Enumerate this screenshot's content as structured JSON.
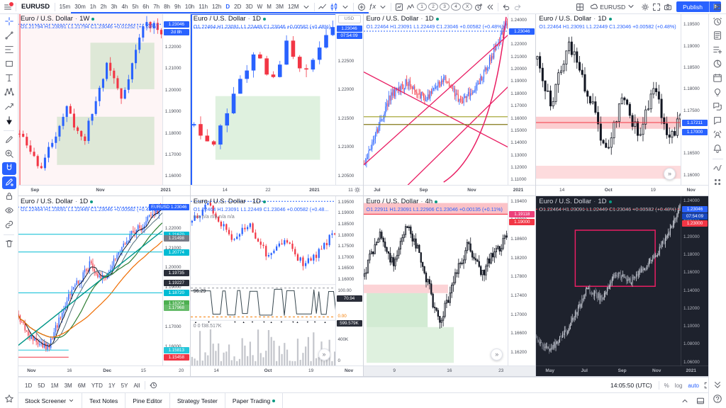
{
  "toolbar": {
    "symbol": "EURUSD",
    "timeframes": [
      "15m",
      "30m",
      "1h",
      "2h",
      "3h",
      "4h",
      "5h",
      "6h",
      "7h",
      "8h",
      "9h",
      "10h",
      "11h",
      "12h",
      "D",
      "2D",
      "3D",
      "W",
      "M",
      "3M",
      "12M"
    ],
    "active_timeframe": "D",
    "fx_label": "ƒx",
    "quick_buttons": [
      "1",
      "2",
      "3",
      "4",
      "X"
    ],
    "layout_name": "EURUSD",
    "publish_label": "Publish",
    "accent_color": "#2962ff"
  },
  "left_toolbar": {
    "tools": [
      "crosshair",
      "trend-line",
      "fib-retracement",
      "rectangle",
      "text-tool",
      "xabcd-pattern",
      "forecast",
      "arrow-marker",
      "brush",
      "zoom-in",
      "magnet",
      "drawing-mode",
      "lock-all-drawings",
      "hide-all-drawings",
      "sync-drawings",
      "remove-drawings"
    ],
    "active": [
      "magnet",
      "drawing-mode"
    ],
    "bottom": "favorites"
  },
  "right_toolbar": {
    "items": [
      "alerts",
      "news",
      "watchlist-add",
      "hotlists",
      "economic-calendar",
      "ideas",
      "public-chats",
      "private-chats",
      "streams",
      "notifications",
      "object-tree",
      "more"
    ],
    "bottom": [
      "collapse",
      "help"
    ]
  },
  "panels": [
    {
      "title": "Euro / U.S. Dollar",
      "timeframe": "1W",
      "ohlc": "O1.21794 H1.23091 L1.21794 C1.23046 +0.01252 (+1.03%)",
      "price_ticks": [
        "1.22000",
        "1.21000",
        "1.20000",
        "1.19000",
        "1.18000",
        "1.17000",
        "1.16000"
      ],
      "tags": [
        {
          "text": "1.23046",
          "color": "#2962ff"
        },
        {
          "text": "2d 8h",
          "color": "#2962ff"
        }
      ],
      "time_ticks": [
        "Sep",
        "Nov",
        "2021"
      ]
    },
    {
      "title": "Euro / U.S. Dollar",
      "timeframe": "1D",
      "ohlc": "O1.22464 H1.23091 L1.22449 C1.23046 +0.00582 (+0.48%)",
      "currency_button": "USD",
      "price_ticks": [
        "1.22500",
        "1.22000",
        "1.21500",
        "1.21000",
        "1.20500"
      ],
      "tags": [
        {
          "text": "1.23046",
          "color": "#2962ff"
        },
        {
          "text": "07:54:09",
          "color": "#2962ff"
        }
      ],
      "time_ticks": [
        "14",
        "22",
        "2021",
        "11"
      ]
    },
    {
      "title": "Euro / U.S. Dollar",
      "timeframe": "1D",
      "ohlc": "O1.22464 H1.23091 L1.22449 C1.23046 +0.00582 (+0.48%)",
      "price_ticks": [
        "1.24000",
        "1.23000",
        "1.22000",
        "1.21000",
        "1.20000",
        "1.19000",
        "1.18000",
        "1.17000",
        "1.16000",
        "1.15000",
        "1.14000",
        "1.13000",
        "1.12000",
        "1.11000"
      ],
      "tags": [
        {
          "text": "1.23046",
          "color": "#2962ff"
        }
      ],
      "time_ticks": [
        "Jul",
        "Sep",
        "Nov",
        "2021"
      ]
    },
    {
      "title": "Euro / U.S. Dollar",
      "timeframe": "1D",
      "ohlc": "O1.22464 H1.23091 L1.22449 C1.23046 +0.00582 (+0.48%)",
      "price_ticks": [
        "1.19500",
        "1.19000",
        "1.18500",
        "1.18000",
        "1.17500",
        "1.17000",
        "1.16500",
        "1.16000"
      ],
      "tags": [
        {
          "text": "1.17211",
          "color": "#2962ff"
        },
        {
          "text": "1.17000",
          "color": "#2962ff"
        }
      ],
      "time_ticks": [
        "14",
        "Oct",
        "19",
        "Nov"
      ],
      "expand": true
    },
    {
      "title": "Euro / U.S. Dollar",
      "timeframe": "1D",
      "ohlc": "O1.22464 H1.23091 L1.22449 C1.23046 +0.00582 (+0.48%)",
      "price_ticks": [
        "1.23000",
        "1.22000",
        "1.21000",
        "1.20000",
        "1.19000",
        "1.18000",
        "1.17000",
        "1.16000"
      ],
      "tags": [
        {
          "text": "EURUSD 1.23046",
          "color": "#2962ff",
          "wide": true
        },
        {
          "text": "1.21670",
          "color": "#00bcd4"
        },
        {
          "text": "1.21498",
          "color": "#787b86"
        },
        {
          "text": "1.20774",
          "color": "#00bcd4"
        },
        {
          "text": "1.19735",
          "color": "#2a2e39"
        },
        {
          "text": "1.19227",
          "color": "#2a2e39"
        },
        {
          "text": "1.18720",
          "color": "#00bcd4"
        },
        {
          "text": "1.18204",
          "color": "#4caf50"
        },
        {
          "text": "1.17968",
          "color": "#66bb6a"
        },
        {
          "text": "1.15813",
          "color": "#26c6da"
        },
        {
          "text": "1.15458",
          "color": "#f23645"
        }
      ],
      "time_ticks": [
        "Nov",
        "16",
        "Dec",
        "15",
        "20"
      ]
    },
    {
      "title": "Euro / U.S. Dollar",
      "timeframe": "1D",
      "ohlc": "O1.22464 H1.23091 L1.22449 C1.23046 +0.00582 (+0.48...",
      "indicator_line": "n/a n/a n/a n/a n/a",
      "price_ticks": [
        "1.19500",
        "1.19000",
        "1.18500",
        "1.18000",
        "1.17500",
        "1.17000",
        "1.16500",
        "1.16000"
      ],
      "tags": [],
      "stoch": {
        "label": "96.29",
        "upper": "100.00",
        "tag": "70.94",
        "lower": "0.00"
      },
      "volume": {
        "label": "0 0 f38.517K",
        "tag": "599.579K",
        "tick": "400K",
        "zero": "0"
      },
      "time_ticks": [
        "14",
        "Oct",
        "19",
        "Nov"
      ],
      "expand": true
    },
    {
      "title": "Euro / U.S. Dollar",
      "timeframe": "4h",
      "ohlc": "O1.22911 H1.23091 L1.22906 C1.23046 +0.00135 (+0.11%)",
      "price_ticks": [
        "1.19400",
        "1.19000",
        "1.18600",
        "1.18200",
        "1.17800",
        "1.17400",
        "1.17000",
        "1.16600",
        "1.16200"
      ],
      "tags": [
        {
          "text": "1.19118",
          "color": "#ec407a"
        },
        {
          "text": "1.19000",
          "color": "#f23645"
        }
      ],
      "time_ticks": [
        "9",
        "16",
        "23"
      ],
      "expand": true
    },
    {
      "title": "Euro / U.S. Dollar",
      "timeframe": "1D",
      "ohlc": "O1.22464 H1.23091 L1.22449 C1.23046 +0.00582 (+0.48%)",
      "price_ticks": [
        "1.24000",
        "1.22000",
        "1.20000",
        "1.18000",
        "1.16000",
        "1.14000",
        "1.12000",
        "1.10000",
        "1.08000",
        "1.06000"
      ],
      "tags": [
        {
          "text": "1.23046",
          "color": "#2962ff"
        },
        {
          "text": "07:54:09",
          "color": "#1848c0"
        },
        {
          "text": "1.23000",
          "color": "#f23645"
        }
      ],
      "time_ticks": [
        "May",
        "Jul",
        "Sep",
        "Nov",
        "2021"
      ],
      "theme": "dark"
    }
  ],
  "bottom_toolbar": {
    "ranges": [
      "1D",
      "5D",
      "1M",
      "3M",
      "6M",
      "YTD",
      "1Y",
      "5Y",
      "All"
    ],
    "time": "14:05:50 (UTC)",
    "percent": "%",
    "log": "log",
    "auto": "auto"
  },
  "bottom_tabs": {
    "tabs": [
      "Stock Screener",
      "Text Notes",
      "Pine Editor",
      "Strategy Tester",
      "Paper Trading"
    ],
    "dropdown_tab": "Stock Screener",
    "highlight_tab": "Paper Trading"
  }
}
